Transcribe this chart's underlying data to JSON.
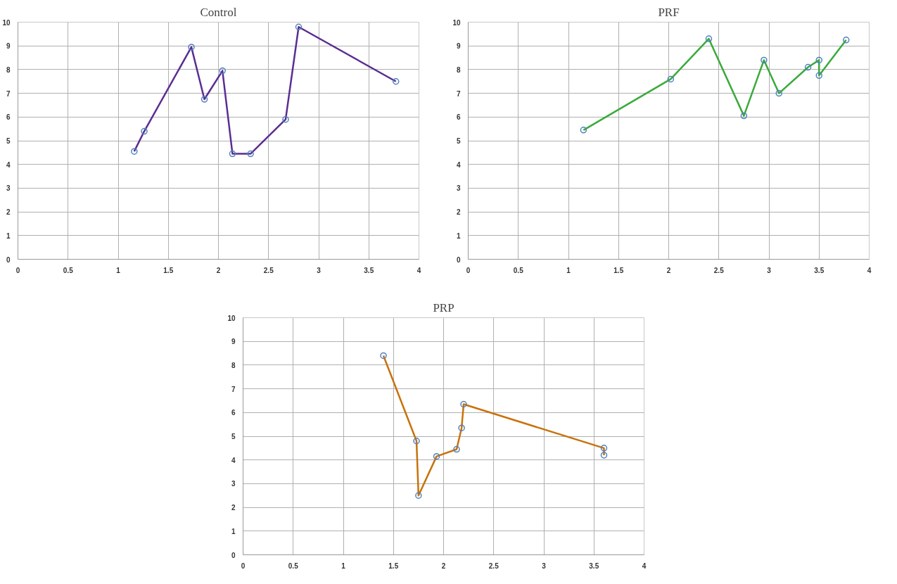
{
  "chart_data": [
    {
      "type": "line",
      "title": "Control",
      "xlim": [
        0,
        4
      ],
      "ylim": [
        0,
        10
      ],
      "xticks": [
        0,
        0.5,
        1,
        1.5,
        2,
        2.5,
        3,
        3.5,
        4
      ],
      "yticks": [
        0,
        1,
        2,
        3,
        4,
        5,
        6,
        7,
        8,
        9,
        10
      ],
      "grid": true,
      "marker": "circle",
      "series": [
        {
          "color": "#5b2d91",
          "x": [
            1.16,
            1.26,
            1.73,
            1.86,
            2.04,
            2.14,
            2.32,
            2.67,
            2.8,
            3.77
          ],
          "values": [
            4.55,
            5.4,
            8.95,
            6.75,
            7.95,
            4.45,
            4.45,
            5.9,
            9.8,
            7.5
          ]
        }
      ]
    },
    {
      "type": "line",
      "title": "PRF",
      "xlim": [
        0,
        4
      ],
      "ylim": [
        0,
        10
      ],
      "xticks": [
        0,
        0.5,
        1,
        1.5,
        2,
        2.5,
        3,
        3.5,
        4
      ],
      "yticks": [
        0,
        1,
        2,
        3,
        4,
        5,
        6,
        7,
        8,
        9,
        10
      ],
      "grid": true,
      "marker": "circle",
      "series": [
        {
          "color": "#3aaa3a",
          "x": [
            1.15,
            2.02,
            2.4,
            2.75,
            2.95,
            3.1,
            3.39,
            3.5,
            3.5,
            3.77
          ],
          "values": [
            5.45,
            7.6,
            9.3,
            6.05,
            8.4,
            7.0,
            8.1,
            8.4,
            7.75,
            9.25
          ]
        }
      ]
    },
    {
      "type": "line",
      "title": "PRP",
      "xlim": [
        0,
        4
      ],
      "ylim": [
        0,
        10
      ],
      "xticks": [
        0,
        0.5,
        1,
        1.5,
        2,
        2.5,
        3,
        3.5,
        4
      ],
      "yticks": [
        0,
        1,
        2,
        3,
        4,
        5,
        6,
        7,
        8,
        9,
        10
      ],
      "grid": true,
      "marker": "circle",
      "series": [
        {
          "color": "#c8720a",
          "x": [
            1.4,
            1.73,
            1.75,
            1.93,
            2.13,
            2.18,
            2.2,
            3.6,
            3.6
          ],
          "values": [
            8.4,
            4.8,
            2.5,
            4.15,
            4.45,
            5.35,
            6.35,
            4.5,
            4.2
          ]
        }
      ]
    }
  ]
}
